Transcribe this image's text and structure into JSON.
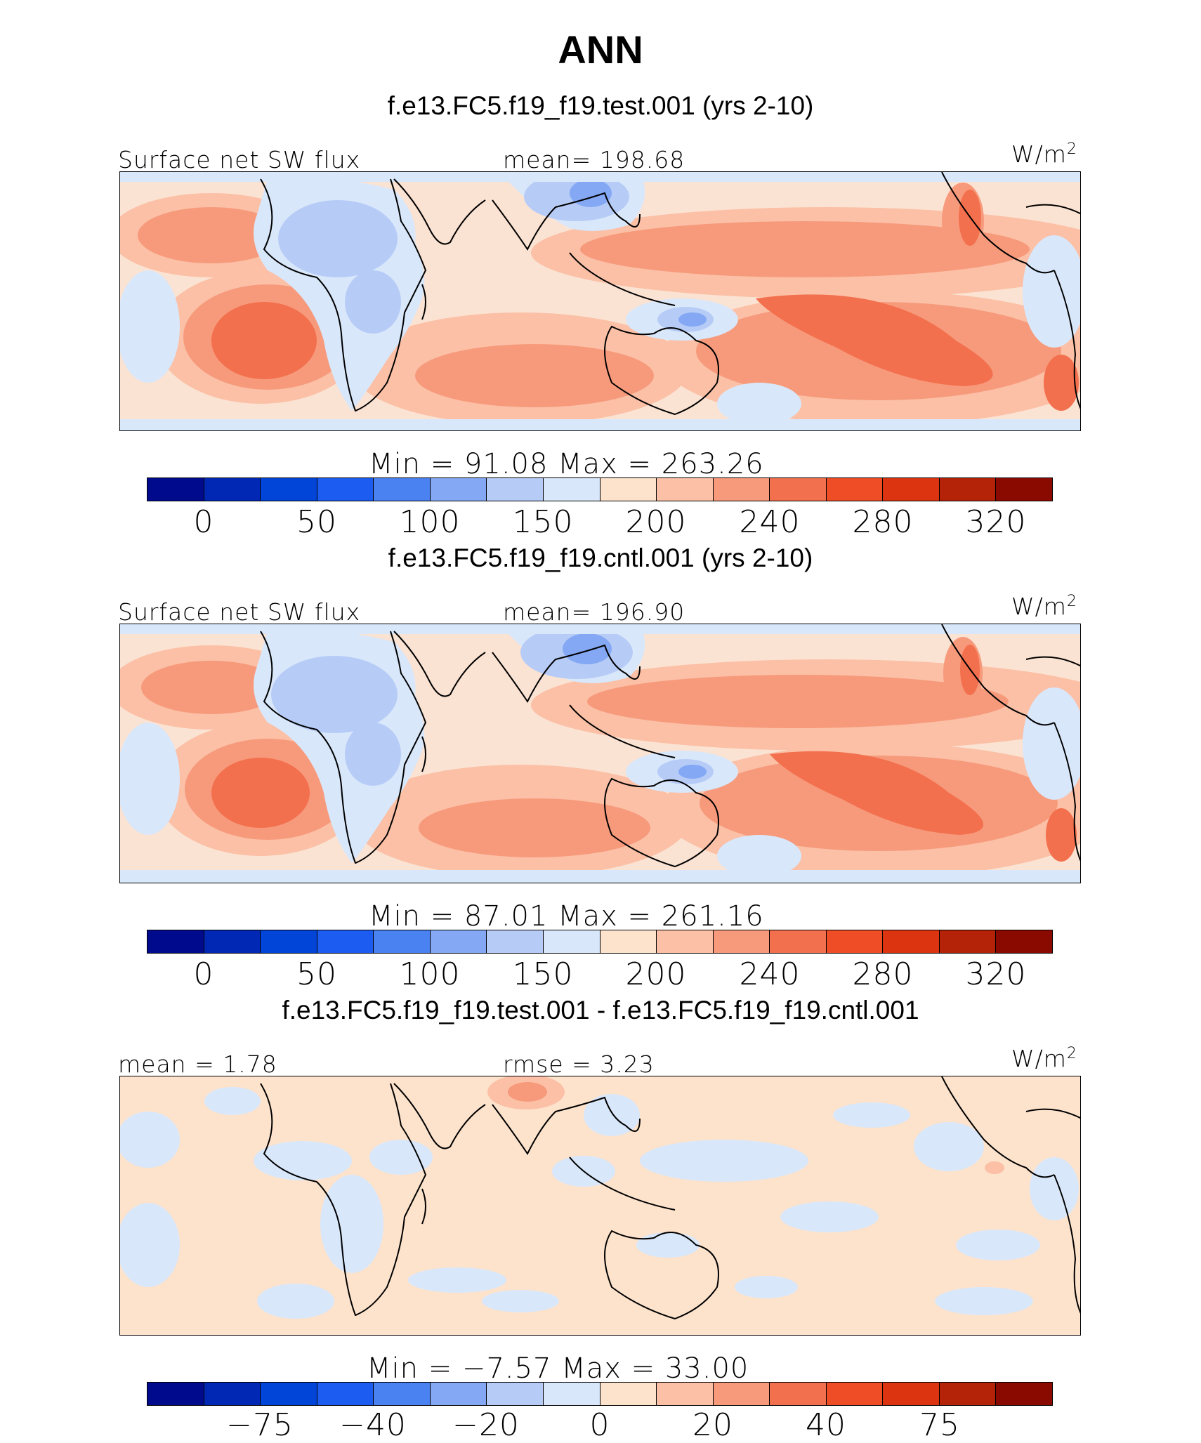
{
  "title": "ANN",
  "panels": [
    {
      "case_title": "f.e13.FC5.f19_f19.test.001 (yrs 2-10)",
      "left_label": "Surface net SW flux",
      "center_label": "mean= 198.68",
      "units": "W/m",
      "units_exp": "2",
      "minmax": "Min =  91.08 Max = 263.26",
      "colorbar_ticks": [
        "0",
        "50",
        "100",
        "150",
        "200",
        "240",
        "280",
        "320"
      ]
    },
    {
      "case_title": "f.e13.FC5.f19_f19.cntl.001 (yrs 2-10)",
      "left_label": "Surface net SW flux",
      "center_label": "mean= 196.90",
      "units": "W/m",
      "units_exp": "2",
      "minmax": "Min =  87.01 Max = 261.16",
      "colorbar_ticks": [
        "0",
        "50",
        "100",
        "150",
        "200",
        "240",
        "280",
        "320"
      ]
    },
    {
      "case_title": "f.e13.FC5.f19_f19.test.001 - f.e13.FC5.f19_f19.cntl.001",
      "left_label": "mean =   1.78",
      "center_label": "rmse =   3.23",
      "units": "W/m",
      "units_exp": "2",
      "minmax": "Min =  −7.57 Max =  33.00",
      "colorbar_ticks": [
        "−75",
        "−40",
        "−20",
        "0",
        "20",
        "40",
        "75"
      ]
    }
  ],
  "colorbar_colors": [
    "#000a8c",
    "#0028b4",
    "#0044d8",
    "#1c5cf0",
    "#4a82f2",
    "#84a8f4",
    "#b6ccf7",
    "#d9e7fa",
    "#fde3cc",
    "#fbc0a6",
    "#f79a7c",
    "#f3704e",
    "#ee4d26",
    "#dc3410",
    "#b42208",
    "#8a0a00"
  ],
  "colors": {
    "ocean_base": "#fbe3d3",
    "land_light_blue": "#d9e7fa",
    "mid_blue": "#b6ccf7",
    "blue": "#84a8f4",
    "peach": "#fbc0a6",
    "salmon": "#f79a7c",
    "orange_red": "#f3704e"
  }
}
